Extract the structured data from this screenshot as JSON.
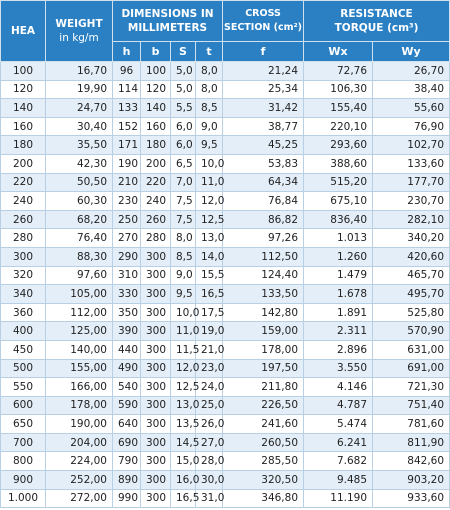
{
  "header": {
    "hea": "HEA",
    "weight": [
      "WEIGHT",
      "in kg/m"
    ],
    "dimensions": [
      "DIMENSIONS IN",
      "MILLIMETERS"
    ],
    "cross_section": [
      "CROSS",
      "SECTION (cm²)"
    ],
    "resistance": [
      "RESISTANCE",
      "TORQUE (cm³)"
    ],
    "sub": [
      "h",
      "b",
      "S",
      "t",
      "f",
      "Wx",
      "Wy"
    ]
  },
  "table": {
    "rows": [
      [
        "100",
        "16,70",
        "96",
        "100",
        "5,0",
        "8,0",
        "21,24",
        "72,76",
        "26,70"
      ],
      [
        "120",
        "19,90",
        "114",
        "120",
        "5,0",
        "8,0",
        "25,34",
        "106,30",
        "38,40"
      ],
      [
        "140",
        "24,70",
        "133",
        "140",
        "5,5",
        "8,5",
        "31,42",
        "155,40",
        "55,60"
      ],
      [
        "160",
        "30,40",
        "152",
        "160",
        "6,0",
        "9,0",
        "38,77",
        "220,10",
        "76,90"
      ],
      [
        "180",
        "35,50",
        "171",
        "180",
        "6,0",
        "9,5",
        "45,25",
        "293,60",
        "102,70"
      ],
      [
        "200",
        "42,30",
        "190",
        "200",
        "6,5",
        "10,0",
        "53,83",
        "388,60",
        "133,60"
      ],
      [
        "220",
        "50,50",
        "210",
        "220",
        "7,0",
        "11,0",
        "64,34",
        "515,20",
        "177,70"
      ],
      [
        "240",
        "60,30",
        "230",
        "240",
        "7,5",
        "12,0",
        "76,84",
        "675,10",
        "230,70"
      ],
      [
        "260",
        "68,20",
        "250",
        "260",
        "7,5",
        "12,5",
        "86,82",
        "836,40",
        "282,10"
      ],
      [
        "280",
        "76,40",
        "270",
        "280",
        "8,0",
        "13,0",
        "97,26",
        "1.013",
        "340,20"
      ],
      [
        "300",
        "88,30",
        "290",
        "300",
        "8,5",
        "14,0",
        "112,50",
        "1.260",
        "420,60"
      ],
      [
        "320",
        "97,60",
        "310",
        "300",
        "9,0",
        "15,5",
        "124,40",
        "1.479",
        "465,70"
      ],
      [
        "340",
        "105,00",
        "330",
        "300",
        "9,5",
        "16,5",
        "133,50",
        "1.678",
        "495,70"
      ],
      [
        "360",
        "112,00",
        "350",
        "300",
        "10,0",
        "17,5",
        "142,80",
        "1.891",
        "525,80"
      ],
      [
        "400",
        "125,00",
        "390",
        "300",
        "11,0",
        "19,0",
        "159,00",
        "2.311",
        "570,90"
      ],
      [
        "450",
        "140,00",
        "440",
        "300",
        "11,5",
        "21,0",
        "178,00",
        "2.896",
        "631,00"
      ],
      [
        "500",
        "155,00",
        "490",
        "300",
        "12,0",
        "23,0",
        "197,50",
        "3.550",
        "691,00"
      ],
      [
        "550",
        "166,00",
        "540",
        "300",
        "12,5",
        "24,0",
        "211,80",
        "4.146",
        "721,30"
      ],
      [
        "600",
        "178,00",
        "590",
        "300",
        "13,0",
        "25,0",
        "226,50",
        "4.787",
        "751,40"
      ],
      [
        "650",
        "190,00",
        "640",
        "300",
        "13,5",
        "26,0",
        "241,60",
        "5.474",
        "781,60"
      ],
      [
        "700",
        "204,00",
        "690",
        "300",
        "14,5",
        "27,0",
        "260,50",
        "6.241",
        "811,90"
      ],
      [
        "800",
        "224,00",
        "790",
        "300",
        "15,0",
        "28,0",
        "285,50",
        "7.682",
        "842,60"
      ],
      [
        "900",
        "252,00",
        "890",
        "300",
        "16,0",
        "30,0",
        "320,50",
        "9.485",
        "903,20"
      ],
      [
        "1.000",
        "272,00",
        "990",
        "300",
        "16,5",
        "31,0",
        "346,80",
        "11.190",
        "933,60"
      ]
    ]
  }
}
